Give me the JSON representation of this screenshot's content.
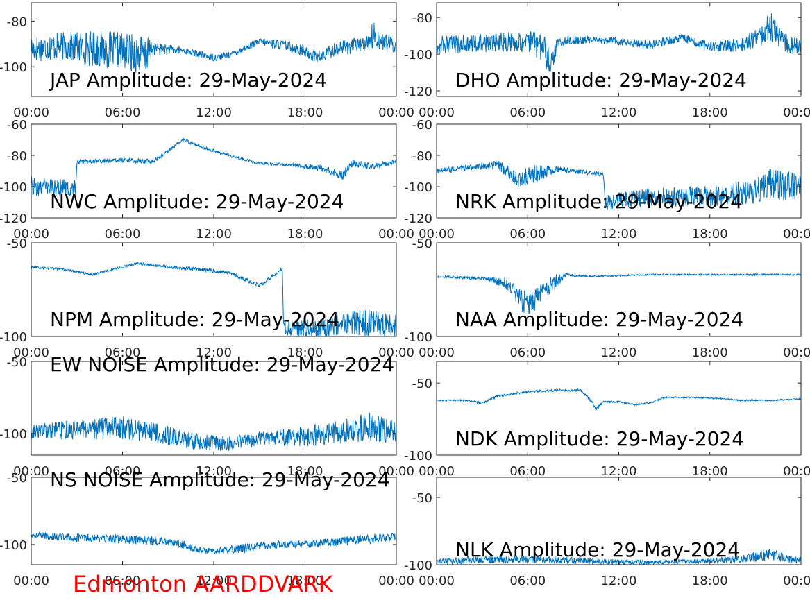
{
  "chart_data": [
    {
      "type": "line",
      "title": "JAP Amplitude: 29-May-2024",
      "x_ticks": [
        "00:00",
        "06:00",
        "12:00",
        "18:00",
        "00:00"
      ],
      "y_ticks": [
        "-80",
        "-100"
      ],
      "y_tick_values": [
        -80,
        -100
      ],
      "ylim": [
        -113,
        -72
      ],
      "xlim": [
        0,
        24
      ],
      "series_color": "#0072BD",
      "profile": {
        "hours": [
          0,
          2,
          4,
          6,
          7.5,
          8,
          10,
          12,
          13,
          15,
          17,
          19,
          20,
          21,
          22,
          22.5,
          23,
          24
        ],
        "mean": [
          -92,
          -91,
          -92,
          -93,
          -95,
          -92,
          -93,
          -96,
          -95,
          -89,
          -91,
          -96,
          -92,
          -91,
          -90,
          -86,
          -89,
          -91
        ],
        "noise": [
          6,
          6,
          8,
          8,
          9,
          3,
          1.5,
          1.5,
          1.5,
          1.5,
          2.5,
          3,
          3,
          3.5,
          3,
          6,
          4,
          4
        ]
      }
    },
    {
      "type": "line",
      "title": "DHO Amplitude: 29-May-2024",
      "x_ticks": [
        "00:00",
        "06:00",
        "12:00",
        "18:00",
        "00:00"
      ],
      "y_ticks": [
        "-80",
        "-100",
        "-120"
      ],
      "y_tick_values": [
        -80,
        -100,
        -120
      ],
      "ylim": [
        -123,
        -72
      ],
      "xlim": [
        0,
        24
      ],
      "series_color": "#0072BD",
      "profile": {
        "hours": [
          0,
          3,
          6,
          7,
          7.5,
          8,
          10,
          12,
          14,
          16,
          18,
          20,
          21,
          22,
          23,
          24
        ],
        "mean": [
          -95,
          -94,
          -93,
          -96,
          -106,
          -93,
          -92,
          -93,
          -95,
          -91,
          -96,
          -95,
          -92,
          -85,
          -94,
          -97
        ],
        "noise": [
          5,
          5,
          6,
          8,
          8,
          3,
          2,
          2,
          2.5,
          2.5,
          3,
          4,
          6,
          8,
          5,
          5
        ]
      }
    },
    {
      "type": "line",
      "title": "NWC Amplitude: 29-May-2024",
      "x_ticks": [
        "00:00",
        "06:00",
        "12:00",
        "18:00",
        "00:00"
      ],
      "y_ticks": [
        "-60",
        "-80",
        "-100",
        "-120"
      ],
      "y_tick_values": [
        -60,
        -80,
        -100,
        -120
      ],
      "ylim": [
        -120,
        -60
      ],
      "xlim": [
        0,
        24
      ],
      "series_color": "#0072BD",
      "profile": {
        "hours": [
          0,
          2.9,
          3,
          6,
          8,
          10,
          11,
          13,
          15,
          17,
          19,
          20.5,
          21,
          22.5,
          24
        ],
        "mean": [
          -100,
          -101,
          -84,
          -83,
          -84,
          -70,
          -74,
          -80,
          -85,
          -86,
          -88,
          -93,
          -85,
          -87,
          -84
        ],
        "noise": [
          6,
          6,
          1.5,
          1.5,
          1.5,
          1,
          1,
          1,
          1,
          1,
          2,
          3,
          2.5,
          2,
          1.5
        ]
      }
    },
    {
      "type": "line",
      "title": "NRK Amplitude: 29-May-2024",
      "x_ticks": [
        "00:00",
        "06:00",
        "12:00",
        "18:00",
        "00:00"
      ],
      "y_ticks": [
        "-60",
        "-80",
        "-100",
        "-120"
      ],
      "y_tick_values": [
        -60,
        -80,
        -100,
        -120
      ],
      "ylim": [
        -120,
        -60
      ],
      "xlim": [
        0,
        24
      ],
      "series_color": "#0072BD",
      "profile": {
        "hours": [
          0,
          2,
          4,
          5.5,
          6.5,
          8,
          10,
          11,
          11.1,
          14,
          18,
          21,
          22,
          24
        ],
        "mean": [
          -90,
          -88,
          -86,
          -96,
          -92,
          -89,
          -91,
          -92,
          -110,
          -107,
          -106,
          -103,
          -98,
          -101
        ],
        "noise": [
          2,
          2,
          3,
          7,
          6,
          2,
          1.5,
          1.5,
          5,
          6,
          7,
          8,
          10,
          9
        ]
      }
    },
    {
      "type": "line",
      "title": "NPM Amplitude: 29-May-2024",
      "x_ticks": [
        "00:00",
        "06:00",
        "12:00",
        "18:00",
        "00:00"
      ],
      "y_ticks": [
        "-50",
        "-100"
      ],
      "y_tick_values": [
        -50,
        -100
      ],
      "ylim": [
        -100,
        -50
      ],
      "xlim": [
        0,
        24
      ],
      "series_color": "#0072BD",
      "profile": {
        "hours": [
          0,
          2,
          4,
          6,
          7,
          9,
          11,
          13,
          14.5,
          15,
          16.5,
          16.6,
          18,
          20,
          22,
          24
        ],
        "mean": [
          -63,
          -64,
          -67,
          -63,
          -61,
          -63,
          -64,
          -66,
          -71,
          -73,
          -64,
          -95,
          -96,
          -94,
          -93,
          -94
        ],
        "noise": [
          0.6,
          0.6,
          0.6,
          0.6,
          0.6,
          0.8,
          1,
          1,
          1.2,
          1,
          0.8,
          4,
          5,
          6,
          8,
          6
        ]
      }
    },
    {
      "type": "line",
      "title": "NAA Amplitude: 29-May-2024",
      "x_ticks": [
        "00:00",
        "06:00",
        "12:00",
        "18:00",
        "00:00"
      ],
      "y_ticks": [
        "-50",
        "-100"
      ],
      "y_tick_values": [
        -50,
        -100
      ],
      "ylim": [
        -100,
        -50
      ],
      "xlim": [
        0,
        24
      ],
      "series_color": "#0072BD",
      "profile": {
        "hours": [
          0,
          3,
          4.5,
          6,
          7,
          8,
          8.5,
          10,
          14,
          18,
          21,
          24
        ],
        "mean": [
          -68,
          -69,
          -71,
          -84,
          -76,
          -70,
          -67,
          -68,
          -67,
          -67,
          -67,
          -67
        ],
        "noise": [
          0.6,
          0.8,
          3,
          7,
          5,
          4,
          1,
          0.5,
          0.4,
          0.4,
          0.5,
          0.4
        ]
      }
    },
    {
      "type": "line",
      "title": "EW NOISE Amplitude: 29-May-2024",
      "x_ticks": [
        "00:00",
        "06:00",
        "12:00",
        "18:00",
        "00:00"
      ],
      "y_ticks": [
        "-50",
        "-100"
      ],
      "y_tick_values": [
        -50,
        -100
      ],
      "ylim": [
        -115,
        -50
      ],
      "xlim": [
        0,
        24
      ],
      "series_color": "#0072BD",
      "profile": {
        "hours": [
          0,
          3,
          6,
          8,
          11,
          13,
          15,
          18,
          21,
          22,
          24
        ],
        "mean": [
          -99,
          -97,
          -96,
          -99,
          -106,
          -107,
          -104,
          -102,
          -98,
          -95,
          -99
        ],
        "noise": [
          5,
          7,
          8,
          7,
          6,
          5,
          5,
          7,
          9,
          10,
          8
        ]
      }
    },
    {
      "type": "line",
      "title": "NDK Amplitude: 29-May-2024",
      "x_ticks": [
        "00:00",
        "06:00",
        "12:00",
        "18:00",
        "00:00"
      ],
      "y_ticks": [
        "-50",
        "-100"
      ],
      "y_tick_values": [
        -50,
        -100
      ],
      "ylim": [
        -100,
        -35
      ],
      "xlim": [
        0,
        24
      ],
      "series_color": "#0072BD",
      "profile": {
        "hours": [
          0,
          2,
          3,
          4,
          6,
          8,
          9.5,
          10,
          10.5,
          11,
          12,
          13,
          14,
          15,
          17,
          19,
          20,
          22,
          24
        ],
        "mean": [
          -62,
          -62,
          -64,
          -59,
          -56,
          -55,
          -55,
          -60,
          -68,
          -63,
          -63,
          -65,
          -64,
          -60,
          -60,
          -61,
          -62,
          -62,
          -61
        ],
        "noise": [
          0.5,
          0.5,
          0.8,
          0.8,
          0.8,
          0.8,
          0.8,
          1,
          1.5,
          0.6,
          0.6,
          0.6,
          0.6,
          0.5,
          0.5,
          0.5,
          0.5,
          0.5,
          0.5
        ]
      }
    },
    {
      "type": "line",
      "title": "NS NOISE Amplitude: 29-May-2024",
      "x_ticks": [
        "00:00",
        "06:00",
        "12:00",
        "18:00",
        "00:00"
      ],
      "y_ticks": [
        "-50",
        "-100"
      ],
      "y_tick_values": [
        -50,
        -100
      ],
      "ylim": [
        -115,
        -50
      ],
      "xlim": [
        0,
        24
      ],
      "series_color": "#0072BD",
      "profile": {
        "hours": [
          0,
          3,
          6,
          8,
          10,
          11,
          12,
          13,
          14,
          15,
          17,
          19,
          21,
          22,
          24
        ],
        "mean": [
          -93,
          -95,
          -96,
          -97,
          -100,
          -104,
          -105,
          -104,
          -103,
          -101,
          -100,
          -99,
          -97,
          -96,
          -94
        ],
        "noise": [
          2.5,
          3,
          3.5,
          3.5,
          3,
          2.5,
          2,
          3,
          3.5,
          3,
          3,
          3,
          3.5,
          4,
          3
        ]
      }
    },
    {
      "type": "line",
      "title": "NLK Amplitude: 29-May-2024",
      "x_ticks": [
        "00:00",
        "06:00",
        "12:00",
        "18:00",
        "00:00"
      ],
      "y_ticks": [
        "-50",
        "-100"
      ],
      "y_tick_values": [
        -50,
        -100
      ],
      "ylim": [
        -100,
        -35
      ],
      "xlim": [
        0,
        24
      ],
      "series_color": "#0072BD",
      "profile": {
        "hours": [
          0,
          3,
          6,
          9,
          12,
          15,
          18,
          20,
          21,
          22,
          23,
          24
        ],
        "mean": [
          -98,
          -96,
          -96,
          -97,
          -98,
          -98,
          -97,
          -96,
          -94,
          -92,
          -95,
          -96
        ],
        "noise": [
          2,
          3,
          3,
          2.5,
          2,
          1.5,
          2,
          3,
          4,
          5,
          3,
          3
        ]
      }
    }
  ],
  "footer": {
    "label": "Edmonton AARDDVARK",
    "color": "#FF0000"
  }
}
